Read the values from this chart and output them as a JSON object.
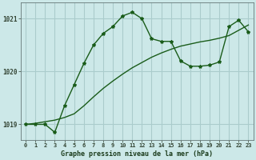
{
  "title": "Graphe pression niveau de la mer (hPa)",
  "bg_color": "#cce8e8",
  "grid_color": "#aacccc",
  "line_color": "#1a5c1a",
  "hours": [
    0,
    1,
    2,
    3,
    4,
    5,
    6,
    7,
    8,
    9,
    10,
    11,
    12,
    13,
    14,
    15,
    16,
    17,
    18,
    19,
    20,
    21,
    22,
    23
  ],
  "pressure_main": [
    1019.0,
    1019.0,
    1019.0,
    1018.85,
    1019.35,
    1019.75,
    1020.15,
    1020.5,
    1020.72,
    1020.85,
    1021.05,
    1021.12,
    1021.0,
    1020.62,
    1020.57,
    1020.57,
    1020.2,
    1020.1,
    1020.1,
    1020.12,
    1020.18,
    1020.85,
    1020.97,
    1020.75
  ],
  "pressure_smooth": [
    1019.0,
    1019.02,
    1019.05,
    1019.08,
    1019.13,
    1019.2,
    1019.35,
    1019.52,
    1019.68,
    1019.82,
    1019.95,
    1020.07,
    1020.17,
    1020.27,
    1020.35,
    1020.42,
    1020.48,
    1020.52,
    1020.56,
    1020.59,
    1020.63,
    1020.68,
    1020.78,
    1020.88
  ],
  "ylim": [
    1018.7,
    1021.3
  ],
  "yticks": [
    1019,
    1020,
    1021
  ],
  "xticks": [
    0,
    1,
    2,
    3,
    4,
    5,
    6,
    7,
    8,
    9,
    10,
    11,
    12,
    13,
    14,
    15,
    16,
    17,
    18,
    19,
    20,
    21,
    22,
    23
  ],
  "title_fontsize": 6.0,
  "tick_fontsize": 5.0,
  "ytick_fontsize": 5.5
}
